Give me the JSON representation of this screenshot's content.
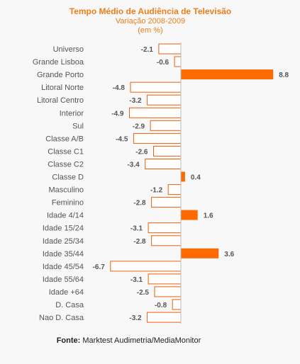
{
  "chart_data": {
    "type": "bar",
    "orientation": "horizontal",
    "title": "Tempo Médio de Audiência  de Televisão",
    "subtitle": "Variação 2008-2009",
    "unit_label": "(em %)",
    "categories": [
      "Universo",
      "Grande Lisboa",
      "Grande Porto",
      "Litoral Norte",
      "Litoral Centro",
      "Interior",
      "Sul",
      "Classe A/B",
      "Classe C1",
      "Classe C2",
      "Classe D",
      "Masculino",
      "Feminino",
      "Idade 4/14",
      "Idade 15/24",
      "Idade 25/34",
      "Idade 35/44",
      "Idade 45/54",
      "Idade 55/64",
      "Idade +64",
      "D. Casa",
      "Nao D. Casa"
    ],
    "values": [
      -2.1,
      -0.6,
      8.8,
      -4.8,
      -3.2,
      -4.9,
      -2.9,
      -4.5,
      -2.6,
      -3.4,
      0.4,
      -1.2,
      -2.8,
      1.6,
      -3.1,
      -2.8,
      3.6,
      -6.7,
      -3.1,
      -2.5,
      -0.8,
      -3.2
    ],
    "value_labels": [
      "-2.1",
      "-0.6",
      "8.8",
      "-4.8",
      "-3.2",
      "-4.9",
      "-2.9",
      "-4.5",
      "-2.6",
      "-3.4",
      "0.4",
      "-1.2",
      "-2.8",
      "1.6",
      "-3.1",
      "-2.8",
      "3.6",
      "-6.7",
      "-3.1",
      "-2.5",
      "-0.8",
      "-3.2"
    ],
    "colors": {
      "positive_fill": "#ff6a00",
      "negative_fill": "#ffffff",
      "negative_stroke": "#e8600a",
      "title": "#f07d1a",
      "category_text": "#555555",
      "value_text": "#555555",
      "axis": "#bbbbbb"
    },
    "grid": false,
    "legend": "none"
  },
  "source": {
    "label": "Fonte:",
    "text": "Marktest Audimetria/MediaMonitor"
  }
}
